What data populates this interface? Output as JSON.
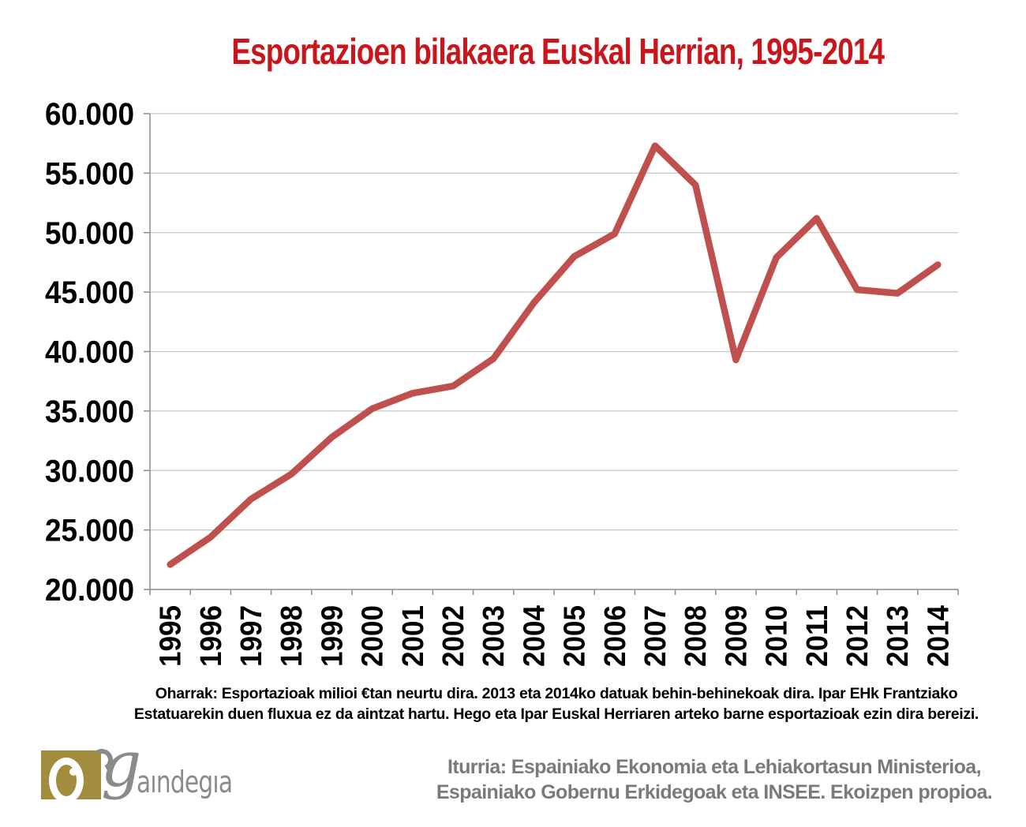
{
  "title": "Esportazioen bilakaera Euskal Herrian, 1995-2014",
  "colors": {
    "title_red": "#c9161d",
    "line_red": "#c0504d",
    "gridline": "#c6c6c6",
    "axis": "#8c8c8c",
    "axis_label": "#000000",
    "source_gray": "#7a7a7a",
    "logo_gold": "#a28c3e",
    "logo_gray": "#8a8a8a"
  },
  "chart_data": {
    "type": "line",
    "title": "Esportazioen bilakaera Euskal Herrian, 1995-2014",
    "categories": [
      "1995",
      "1996",
      "1997",
      "1998",
      "1999",
      "2000",
      "2001",
      "2002",
      "2003",
      "2004",
      "2005",
      "2006",
      "2007",
      "2008",
      "2009",
      "2010",
      "2011",
      "2012",
      "2013",
      "2014"
    ],
    "values": [
      22100,
      24400,
      27600,
      29700,
      32800,
      35200,
      36500,
      37100,
      39400,
      44100,
      48000,
      49900,
      57300,
      54000,
      39300,
      47900,
      51200,
      45200,
      44900,
      47300
    ],
    "unit": "milioi €",
    "ylim": [
      20000,
      60000
    ],
    "ytick_step": 5000,
    "ytick_labels": [
      "20.000",
      "25.000",
      "30.000",
      "35.000",
      "40.000",
      "45.000",
      "50.000",
      "55.000",
      "60.000"
    ],
    "grid": true,
    "legend": false
  },
  "notes": {
    "lines": [
      "Oharrak: Esportazioak milioi €tan neurtu dira. 2013 eta 2014ko datuak behin-behinekoak dira. Ipar EHk Frantziako",
      "Estatuarekin duen fluxua ez da aintzat hartu. Hego eta Ipar Euskal Herriaren arteko barne esportazioak ezin dira bereizi."
    ]
  },
  "source": {
    "lines": [
      "Iturria: Espainiako Ekonomia eta Lehiakortasun Ministerioa,",
      "Espainiako Gobernu Erkidegoak eta INSEE. Ekoizpen propioa."
    ]
  },
  "logo": {
    "g": "g",
    "rest": "aındegıa"
  }
}
